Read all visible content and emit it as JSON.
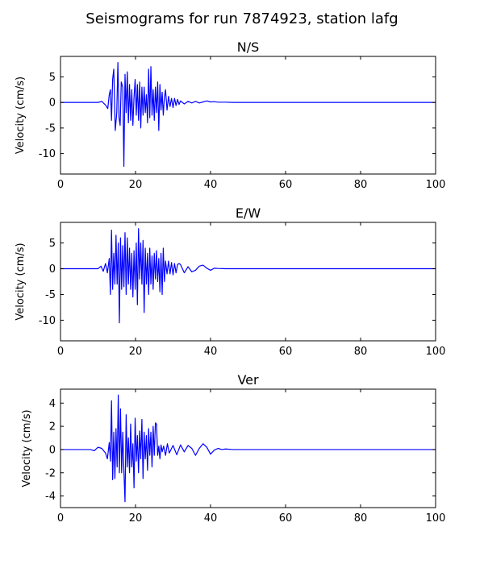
{
  "figure": {
    "title": "Seismograms for run 7874923, station lafg"
  },
  "style": {
    "line_color": "#0000ff",
    "axes_color": "#000000",
    "background": "#ffffff"
  },
  "chart_data": [
    {
      "type": "line",
      "title": "N/S",
      "xlabel": "",
      "ylabel": "Velocity (cm/s)",
      "xlim": [
        0,
        100
      ],
      "ylim": [
        -14,
        9
      ],
      "xticks": [
        0,
        20,
        40,
        60,
        80,
        100
      ],
      "yticks": [
        5,
        0,
        -5,
        -10
      ],
      "grid": false,
      "series": [
        {
          "x": [
            0,
            5,
            10,
            11,
            12,
            12.6,
            13,
            13.3,
            13.6,
            13.9,
            14.2,
            14.6,
            15,
            15.3,
            15.6,
            15.9,
            16.2,
            16.6,
            16.9,
            17.2,
            17.5,
            17.8,
            18.1,
            18.4,
            18.7,
            19,
            19.3,
            19.6,
            19.9,
            20.2,
            20.5,
            20.8,
            21.1,
            21.4,
            21.7,
            22,
            22.3,
            22.6,
            22.9,
            23.2,
            23.5,
            23.8,
            24.1,
            24.4,
            24.7,
            25,
            25.3,
            25.6,
            25.9,
            26.2,
            26.5,
            26.8,
            27.1,
            27.4,
            27.7,
            28,
            28.4,
            28.8,
            29.2,
            29.6,
            30,
            30.4,
            30.8,
            31.2,
            31.6,
            32,
            33,
            34,
            35,
            36,
            37,
            38,
            39,
            40,
            41,
            42,
            44,
            46,
            50,
            60,
            80,
            100
          ],
          "y": [
            0,
            0,
            0,
            0.2,
            -0.5,
            -1.2,
            1.5,
            2.5,
            -3.5,
            4.5,
            6.5,
            -5.5,
            -2,
            7.8,
            -3,
            -4.5,
            4,
            3,
            -12.5,
            5.5,
            -2,
            6,
            -4,
            3.5,
            -3.5,
            2.5,
            -4.5,
            1,
            4.5,
            -2.5,
            3.5,
            -3.5,
            4,
            -5,
            3,
            -2.5,
            3,
            -2,
            1.5,
            -4,
            6.5,
            -3,
            7,
            -2.5,
            2.5,
            -3.5,
            3,
            -2,
            4,
            -5.5,
            3.5,
            -1.5,
            2,
            -2.5,
            1,
            2.5,
            -1.5,
            1.2,
            -0.8,
            0.8,
            -1,
            0.8,
            -0.6,
            0.6,
            -0.4,
            0.3,
            -0.3,
            0.2,
            -0.1,
            0.2,
            -0.1,
            0.1,
            0.3,
            0.1,
            0.15,
            0.05,
            0.05,
            0,
            0,
            0,
            0,
            0
          ]
        }
      ]
    },
    {
      "type": "line",
      "title": "E/W",
      "xlabel": "",
      "ylabel": "Velocity (cm/s)",
      "xlim": [
        0,
        100
      ],
      "ylim": [
        -14,
        9
      ],
      "xticks": [
        0,
        20,
        40,
        60,
        80,
        100
      ],
      "yticks": [
        5,
        0,
        -5,
        -10
      ],
      "grid": false,
      "series": [
        {
          "x": [
            0,
            5,
            10,
            10.8,
            11.4,
            12,
            12.5,
            13,
            13.3,
            13.6,
            13.9,
            14.2,
            14.5,
            14.8,
            15.1,
            15.4,
            15.7,
            16,
            16.3,
            16.6,
            16.9,
            17.2,
            17.5,
            17.8,
            18.1,
            18.4,
            18.7,
            19,
            19.3,
            19.6,
            19.9,
            20.2,
            20.5,
            20.8,
            21.1,
            21.4,
            21.7,
            22,
            22.3,
            22.6,
            22.9,
            23.2,
            23.5,
            23.8,
            24.1,
            24.4,
            24.7,
            25,
            25.3,
            25.6,
            25.9,
            26.2,
            26.5,
            26.8,
            27.1,
            27.4,
            27.7,
            28,
            28.4,
            28.8,
            29.2,
            29.6,
            30,
            30.4,
            30.8,
            31.2,
            31.6,
            32,
            33,
            34,
            35,
            36,
            37,
            38,
            39,
            40,
            41,
            42,
            44,
            46,
            50,
            60,
            80,
            100
          ],
          "y": [
            0,
            0,
            0,
            0.5,
            -0.5,
            1,
            -0.8,
            2,
            -5,
            7.5,
            -4,
            3,
            -3,
            6.5,
            -3,
            5,
            -10.5,
            6,
            -4,
            4.5,
            -3.5,
            7,
            -5,
            6,
            -3,
            4,
            -4,
            3,
            -5.5,
            3.5,
            -4,
            5,
            -7,
            7.8,
            -2,
            5,
            -3,
            5.5,
            -8.5,
            4,
            -3,
            3,
            -5,
            4,
            -3,
            2.5,
            -4,
            3,
            -2,
            3.5,
            -2.5,
            2,
            -4.5,
            3,
            -5,
            4,
            -2.5,
            1.5,
            -1,
            1.5,
            -1,
            1.2,
            -1.2,
            1,
            -0.8,
            0.8,
            1,
            0.8,
            -0.8,
            0.4,
            -0.6,
            -0.3,
            0.5,
            0.7,
            0.1,
            -0.3,
            0.1,
            0.05,
            0,
            0,
            0,
            0,
            0,
            0
          ]
        }
      ]
    },
    {
      "type": "line",
      "title": "Ver",
      "xlabel": "",
      "ylabel": "Velocity (cm/s)",
      "xlim": [
        0,
        100
      ],
      "ylim": [
        -5,
        5.2
      ],
      "xticks": [
        0,
        20,
        40,
        60,
        80,
        100
      ],
      "yticks": [
        4,
        2,
        0,
        -2,
        -4
      ],
      "grid": false,
      "series": [
        {
          "x": [
            0,
            5,
            8,
            9,
            10,
            11,
            12,
            12.5,
            13,
            13.3,
            13.6,
            13.9,
            14.2,
            14.5,
            14.8,
            15.1,
            15.4,
            15.7,
            16,
            16.3,
            16.6,
            16.9,
            17.2,
            17.5,
            17.8,
            18.1,
            18.4,
            18.7,
            19,
            19.3,
            19.6,
            19.9,
            20.2,
            20.5,
            20.8,
            21.1,
            21.4,
            21.7,
            22,
            22.3,
            22.6,
            22.9,
            23.2,
            23.5,
            23.8,
            24.1,
            24.4,
            24.7,
            25,
            25.3,
            25.6,
            25.9,
            26.2,
            26.5,
            26.8,
            27.1,
            27.5,
            28,
            28.5,
            29,
            30,
            31,
            32,
            33,
            34,
            35,
            36,
            37,
            38,
            39,
            40,
            41,
            42,
            43,
            44,
            46,
            50,
            60,
            80,
            100
          ],
          "y": [
            0,
            0,
            0,
            -0.1,
            0.2,
            0.1,
            -0.3,
            -0.8,
            0.6,
            -1,
            4.2,
            -2.6,
            1.5,
            -2.5,
            1.8,
            -1.5,
            4.7,
            -2,
            3.5,
            -2,
            1.5,
            -1.8,
            -4.5,
            3,
            -1.5,
            1,
            -2,
            2.2,
            -1.5,
            0.5,
            -3.3,
            2.7,
            -1,
            1.2,
            -2,
            1.6,
            -0.8,
            2.6,
            -2.5,
            1.5,
            -0.8,
            1.2,
            -1.8,
            1.8,
            -0.5,
            1.5,
            -1.5,
            2,
            -0.5,
            2.3,
            2.2,
            -0.5,
            0.3,
            -0.8,
            0.4,
            -0.2,
            0.3,
            -0.5,
            0.5,
            -0.3,
            0.35,
            -0.45,
            0.4,
            -0.2,
            0.35,
            0.1,
            -0.5,
            0.1,
            0.5,
            0.2,
            -0.4,
            -0.05,
            0.1,
            0,
            0.05,
            0,
            0,
            0,
            0,
            0
          ]
        }
      ]
    }
  ]
}
